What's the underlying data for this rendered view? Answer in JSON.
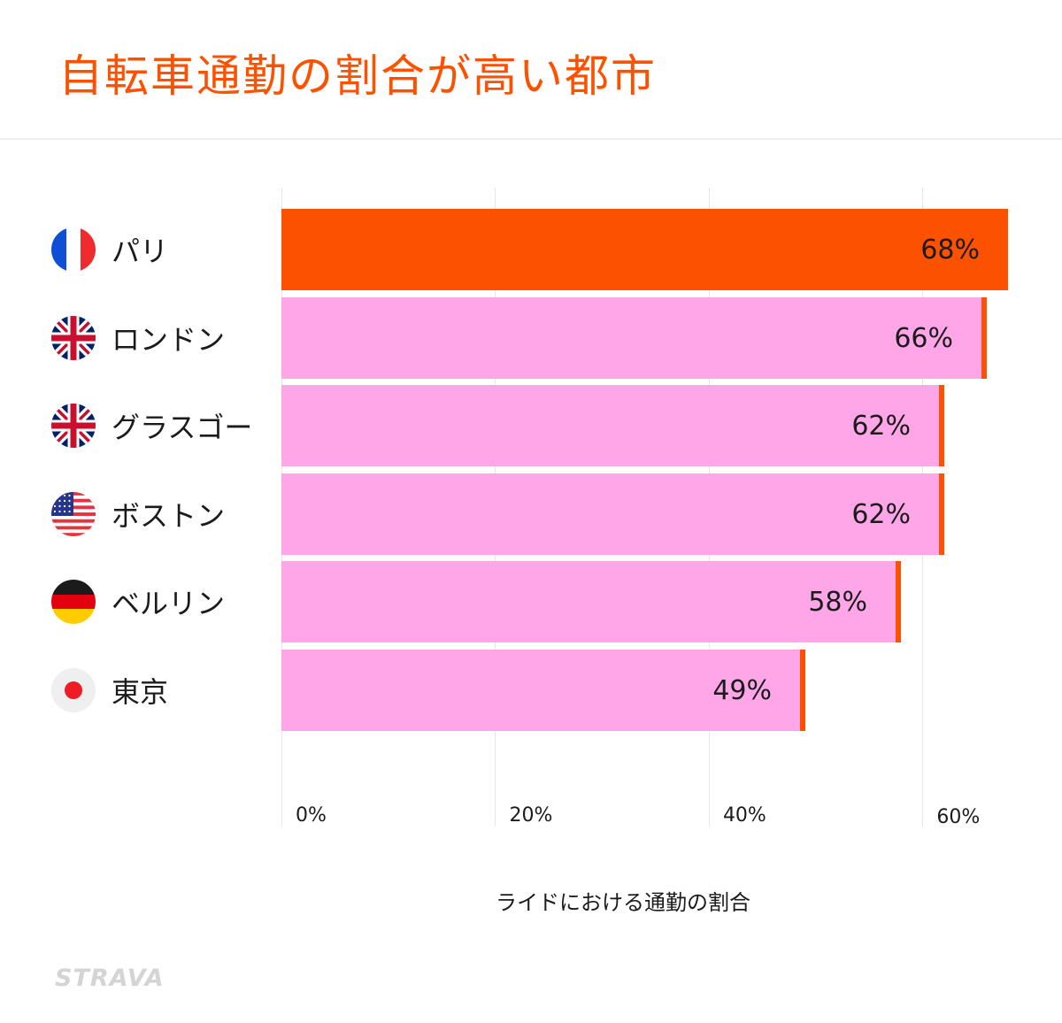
{
  "title": "自転車通勤の割合が高い都市",
  "xlabel": "ライドにおける通勤の割合",
  "brand": "STRAVA",
  "colors": {
    "accent": "#fc5200",
    "bar": "#ffa6e8",
    "highlight": "#fc5200"
  },
  "chart_data": {
    "type": "bar",
    "orientation": "horizontal",
    "title": "自転車通勤の割合が高い都市",
    "xlabel": "ライドにおける通勤の割合",
    "xlim": [
      0,
      68
    ],
    "ticks": [
      0,
      20,
      40,
      60
    ],
    "tick_labels": [
      "0%",
      "20%",
      "40%",
      "60%"
    ],
    "grid": true,
    "categories": [
      "パリ",
      "ロンドン",
      "グラスゴー",
      "ボストン",
      "ベルリン",
      "東京"
    ],
    "flags": [
      "france-flag-icon",
      "uk-flag-icon",
      "uk-flag-icon",
      "usa-flag-icon",
      "germany-flag-icon",
      "japan-flag-icon"
    ],
    "values": [
      68,
      66,
      62,
      62,
      58,
      49
    ],
    "value_labels": [
      "68%",
      "66%",
      "62%",
      "62%",
      "58%",
      "49%"
    ],
    "highlighted": [
      true,
      false,
      false,
      false,
      false,
      false
    ]
  }
}
